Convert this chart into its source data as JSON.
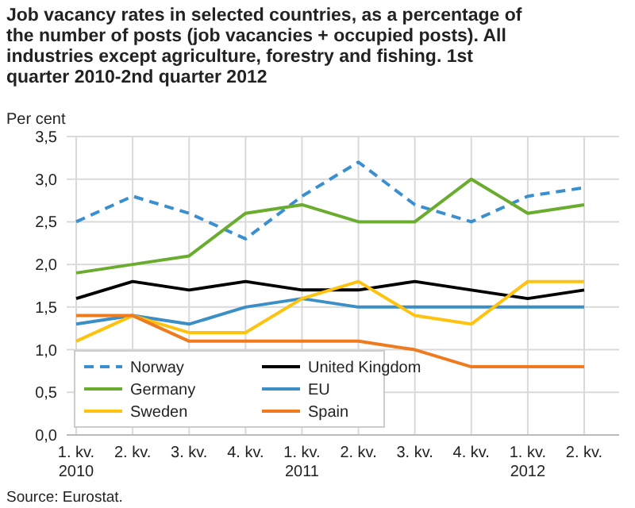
{
  "chart_data": {
    "type": "line",
    "title": "Job vacancy rates in selected countries, as a percentage of the number of posts (job vacancies + occupied posts). All industries except agriculture, forestry and fishing. 1st quarter 2010-2nd quarter 2012",
    "ylabel": "Per cent",
    "annotations": [
      "Source: Eurostat."
    ],
    "categories": [
      "1. kv.\n2010",
      "2. kv.",
      "3. kv.",
      "4. kv.",
      "1. kv.\n2011",
      "2. kv.",
      "3. kv.",
      "4. kv.",
      "1. kv.\n2012",
      "2. kv."
    ],
    "series": [
      {
        "name": "Norway",
        "color": "#3a8fd0",
        "line_style": "dashed",
        "values": [
          2.5,
          2.8,
          2.6,
          2.3,
          2.8,
          3.2,
          2.7,
          2.5,
          2.8,
          2.9
        ]
      },
      {
        "name": "United Kingdom",
        "color": "#000000",
        "values": [
          1.6,
          1.8,
          1.7,
          1.8,
          1.7,
          1.7,
          1.8,
          1.7,
          1.6,
          1.7
        ]
      },
      {
        "name": "Germany",
        "color": "#6aac2e",
        "values": [
          1.9,
          2.0,
          2.1,
          2.6,
          2.7,
          2.5,
          2.5,
          3.0,
          2.6,
          2.7
        ]
      },
      {
        "name": "EU",
        "color": "#3b8fc6",
        "values": [
          1.3,
          1.4,
          1.3,
          1.5,
          1.6,
          1.5,
          1.5,
          1.5,
          1.5,
          1.5
        ]
      },
      {
        "name": "Sweden",
        "color": "#ffc20e",
        "values": [
          1.1,
          1.4,
          1.2,
          1.2,
          1.6,
          1.8,
          1.4,
          1.3,
          1.8,
          1.8
        ]
      },
      {
        "name": "Spain",
        "color": "#f07a1e",
        "values": [
          1.4,
          1.4,
          1.1,
          1.1,
          1.1,
          1.1,
          1.0,
          0.8,
          0.8,
          0.8
        ]
      }
    ],
    "ylim": [
      0,
      3.5
    ],
    "yticks": [
      {
        "value": 0,
        "label": "0,0"
      },
      {
        "value": 0.5,
        "label": "0,5"
      },
      {
        "value": 1,
        "label": "1,0"
      },
      {
        "value": 1.5,
        "label": "1,5"
      },
      {
        "value": 2,
        "label": "2,0"
      },
      {
        "value": 2.5,
        "label": "2,5"
      },
      {
        "value": 3,
        "label": "3,0"
      },
      {
        "value": 3.5,
        "label": "3,5"
      }
    ],
    "grid": true,
    "legend": "bottom left",
    "line_style": "solid"
  }
}
